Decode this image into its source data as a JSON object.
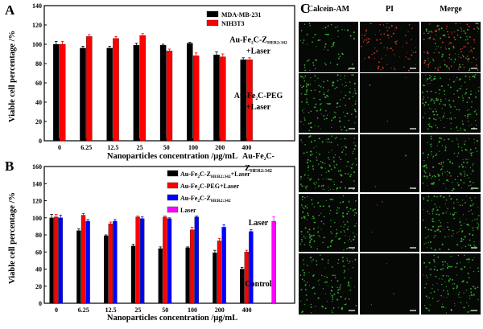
{
  "panels": {
    "a": "A",
    "b": "B",
    "c": "C"
  },
  "chart_data": [
    {
      "id": "A",
      "type": "bar",
      "title": "",
      "xlabel": "Nanoparticles concentration /μg/mL",
      "ylabel": "Viable cell percentage /%",
      "ylim": [
        0,
        140
      ],
      "yticks": [
        "0",
        "20",
        "40",
        "60",
        "80",
        "100",
        "120",
        "140"
      ],
      "categories": [
        "0",
        "6.25",
        "12.5",
        "25",
        "50",
        "100",
        "200",
        "400"
      ],
      "legend_position": "top-right",
      "series": [
        {
          "name": "MDA-MB-231",
          "color": "#000000",
          "values": [
            100,
            96,
            96,
            99,
            99,
            101,
            89,
            84
          ],
          "errors": [
            3,
            2,
            2,
            2,
            1,
            1,
            3,
            2
          ]
        },
        {
          "name": "NIH3T3",
          "color": "#ff0000",
          "values": [
            100,
            108,
            106,
            109,
            93,
            88,
            87,
            84
          ],
          "errors": [
            3,
            2,
            2,
            2,
            2,
            3,
            3,
            2
          ]
        }
      ]
    },
    {
      "id": "B",
      "type": "bar",
      "title": "",
      "xlabel": "Nanoparticles concentration /μg/mL",
      "ylabel": "Viable cell percentage /%",
      "ylim": [
        0,
        160
      ],
      "yticks": [
        "0",
        "20",
        "40",
        "60",
        "80",
        "100",
        "120",
        "140",
        "160"
      ],
      "categories": [
        "0",
        "6.25",
        "12.5",
        "25",
        "50",
        "100",
        "200",
        "400",
        ""
      ],
      "legend_position": "top-right",
      "series": [
        {
          "name": "Au-Fe2C-ZHER2:342+Laser",
          "legend_parts": [
            "Au-Fe",
            "2",
            "C-Z",
            "HER2:342",
            "+Laser"
          ],
          "color": "#000000",
          "values": [
            100,
            85,
            79,
            67,
            64,
            65,
            59,
            40,
            null
          ],
          "errors": [
            4,
            2,
            1,
            2,
            2,
            1,
            3,
            2,
            0
          ]
        },
        {
          "name": "Au-Fe2C-PEG+Laser",
          "legend_parts": [
            "Au-Fe",
            "2",
            "C-PEG+Laser",
            "",
            ""
          ],
          "color": "#ff0000",
          "values": [
            101,
            103,
            93,
            101,
            101,
            86,
            73,
            60,
            null
          ],
          "errors": [
            3,
            2,
            2,
            1,
            1,
            3,
            3,
            2,
            0
          ]
        },
        {
          "name": "Au-Fe2C-ZHER2:342",
          "legend_parts": [
            "Au-Fe",
            "2",
            "C-Z",
            "HER2:342",
            ""
          ],
          "color": "#0000ff",
          "values": [
            100,
            96,
            96,
            99,
            99,
            101,
            89,
            84,
            null
          ],
          "errors": [
            3,
            2,
            2,
            2,
            1,
            1,
            3,
            2,
            0
          ]
        },
        {
          "name": "Laser",
          "legend_parts": [
            "Laser",
            "",
            "",
            "",
            ""
          ],
          "color": "#ff00ff",
          "values": [
            null,
            null,
            null,
            null,
            null,
            null,
            null,
            null,
            96
          ],
          "errors": [
            0,
            0,
            0,
            0,
            0,
            0,
            0,
            0,
            5
          ]
        }
      ]
    }
  ],
  "microscopy": {
    "columns": [
      "Calcein-AM",
      "PI",
      "Merge"
    ],
    "rows": [
      {
        "name": "Au-Fe2C-ZHER2:342+Laser",
        "line1": [
          "Au-Fe",
          "2",
          "C-Z",
          "HER2:342"
        ],
        "line2": "+Laser",
        "line3": "",
        "red": 0.55,
        "green": 0.4
      },
      {
        "name": "Au-Fe2C-PEG+Laser",
        "line1": [
          "Au-Fe",
          "2",
          "C-PEG",
          ""
        ],
        "line2": "+Laser",
        "line3": "",
        "red": 0.02,
        "green": 0.9
      },
      {
        "name": "Au-Fe2C-ZHER2:342",
        "line1": [
          "Au-Fe",
          "2",
          "C-",
          ""
        ],
        "line2": "",
        "line3": "HER2:342",
        "red": 0.02,
        "green": 0.9
      },
      {
        "name": "Laser",
        "line1": [
          "Laser",
          "",
          "",
          ""
        ],
        "line2": "",
        "line3": "",
        "red": 0.02,
        "green": 0.85
      },
      {
        "name": "Control",
        "line1": [
          "Control",
          "",
          "",
          ""
        ],
        "line2": "",
        "line3": "",
        "red": 0.02,
        "green": 0.75
      }
    ]
  },
  "colors": {
    "green_stain": "#3fbf3a",
    "red_stain": "#e23a2a",
    "tile_bg": "#050805"
  }
}
